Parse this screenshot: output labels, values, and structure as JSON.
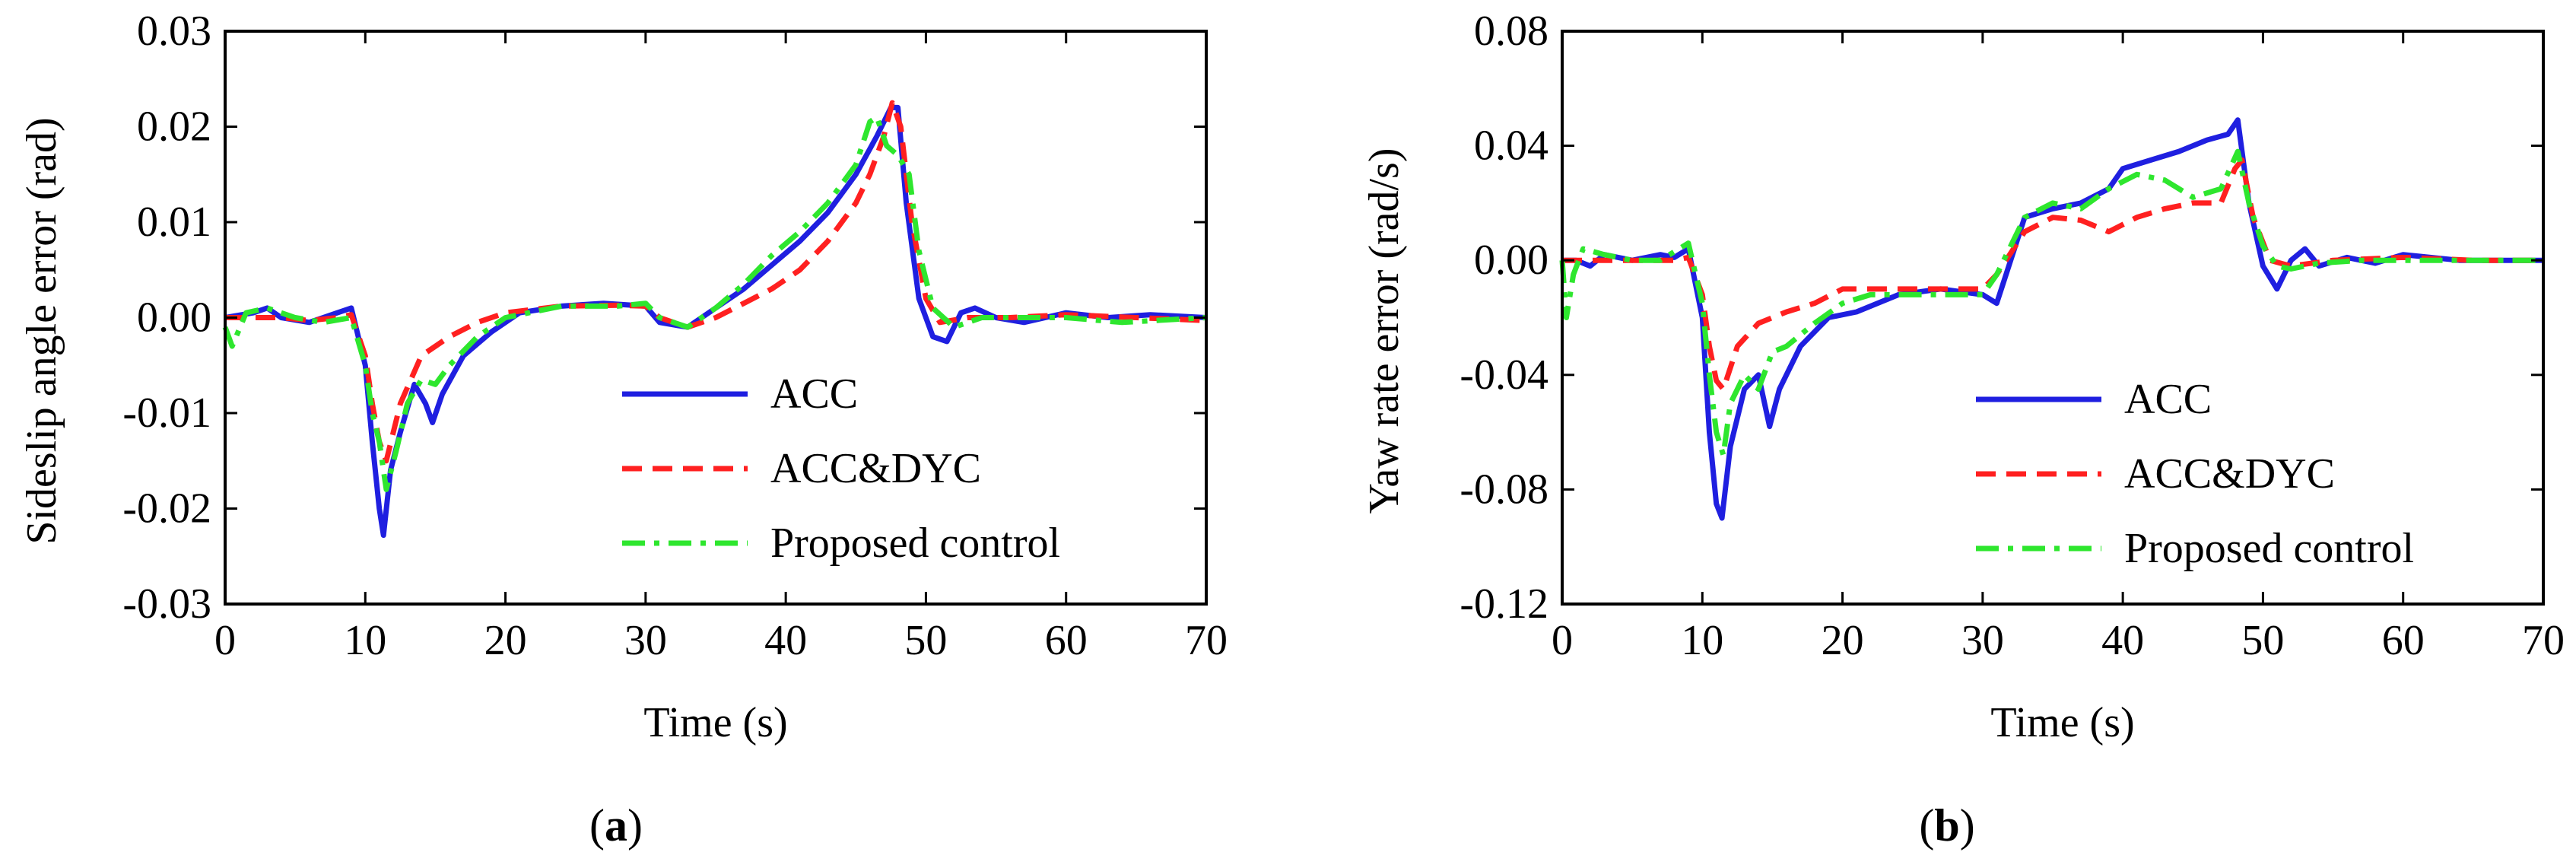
{
  "chart_data": [
    {
      "type": "line",
      "panel_label": "a",
      "xlabel": "Time (s)",
      "ylabel": "Sideslip angle error (rad)",
      "xlim": [
        0,
        70
      ],
      "ylim": [
        -0.03,
        0.03
      ],
      "x_ticks": [
        0,
        10,
        20,
        30,
        40,
        50,
        60,
        70
      ],
      "x_tick_labels": [
        "0",
        "10",
        "20",
        "30",
        "40",
        "50",
        "60",
        "70"
      ],
      "y_ticks": [
        0.03,
        0.02,
        0.01,
        0.0,
        -0.01,
        -0.02,
        -0.03
      ],
      "y_tick_labels": [
        "0.03",
        "0.02",
        "0.01",
        "0.00",
        "-0.01",
        "-0.02",
        "-0.03"
      ],
      "legend_position": "lower-right",
      "series": [
        {
          "name": "ACC",
          "color": "#1f1fe0",
          "dash": "solid",
          "x": [
            0,
            2,
            3,
            4,
            6,
            8,
            9,
            10,
            10.5,
            11,
            11.3,
            11.8,
            12.5,
            13.5,
            14.3,
            14.8,
            15.5,
            17,
            19,
            21,
            24,
            27,
            30,
            31,
            33,
            35,
            37,
            39,
            41,
            43,
            45,
            46.5,
            47.5,
            48,
            48.6,
            49.5,
            50.5,
            51.5,
            52.5,
            53.5,
            55,
            57,
            60,
            63,
            66,
            70
          ],
          "y": [
            0.0,
            0.0005,
            0.001,
            0.0,
            -0.0005,
            0.0005,
            0.001,
            -0.005,
            -0.013,
            -0.02,
            -0.0228,
            -0.016,
            -0.012,
            -0.007,
            -0.009,
            -0.011,
            -0.008,
            -0.004,
            -0.0015,
            0.0005,
            0.0012,
            0.0015,
            0.0012,
            -0.0005,
            -0.001,
            0.001,
            0.003,
            0.0055,
            0.008,
            0.011,
            0.015,
            0.019,
            0.022,
            0.022,
            0.012,
            0.002,
            -0.002,
            -0.0025,
            0.0005,
            0.001,
            0.0,
            -0.0005,
            0.0005,
            0.0,
            0.0003,
            0.0
          ]
        },
        {
          "name": "ACC&DYC",
          "color": "#ff2020",
          "dash": "dashed",
          "x": [
            0,
            2,
            4,
            6,
            8,
            9,
            10,
            10.5,
            11,
            11.5,
            12.5,
            14,
            16,
            18,
            20,
            24,
            28,
            30,
            31,
            33,
            35,
            37,
            39,
            41,
            43,
            45,
            46,
            47,
            47.6,
            48.2,
            49,
            50,
            51,
            53,
            56,
            60,
            65,
            70
          ],
          "y": [
            0.0,
            0.0,
            0.0,
            -0.0003,
            0.0,
            0.0003,
            -0.004,
            -0.009,
            -0.013,
            -0.015,
            -0.009,
            -0.004,
            -0.002,
            -0.0005,
            0.0005,
            0.0012,
            0.0013,
            0.0012,
            0.0,
            -0.001,
            0.0,
            0.0015,
            0.003,
            0.005,
            0.008,
            0.012,
            0.015,
            0.019,
            0.0225,
            0.02,
            0.01,
            0.002,
            -0.0005,
            0.0,
            0.0,
            0.0003,
            0.0,
            -0.0003
          ]
        },
        {
          "name": "Proposed control",
          "color": "#2ee62e",
          "dash": "dashdot",
          "x": [
            0,
            0.5,
            1.5,
            3,
            5,
            7,
            9,
            10,
            10.5,
            11,
            11.5,
            12.2,
            13,
            14,
            15,
            16,
            18,
            20,
            24,
            28,
            30,
            31,
            33,
            35,
            37,
            39,
            41,
            43,
            45,
            46,
            46.5,
            47.2,
            48,
            48.8,
            49.5,
            50.5,
            52,
            54,
            56,
            60,
            64,
            70
          ],
          "y": [
            -0.001,
            -0.003,
            0.0005,
            0.001,
            0.0,
            -0.0005,
            0.0,
            -0.005,
            -0.01,
            -0.013,
            -0.018,
            -0.014,
            -0.009,
            -0.0065,
            -0.007,
            -0.005,
            -0.002,
            0.0,
            0.0012,
            0.0012,
            0.0015,
            0.0,
            -0.001,
            0.001,
            0.0035,
            0.0065,
            0.009,
            0.012,
            0.016,
            0.0205,
            0.021,
            0.018,
            0.017,
            0.015,
            0.007,
            0.001,
            -0.001,
            0.0,
            0.0,
            0.0,
            -0.0005,
            0.0
          ]
        }
      ]
    },
    {
      "type": "line",
      "panel_label": "b",
      "xlabel": "Time (s)",
      "ylabel": "Yaw rate error (rad/s)",
      "xlim": [
        0,
        70
      ],
      "ylim": [
        -0.12,
        0.08
      ],
      "x_ticks": [
        0,
        10,
        20,
        30,
        40,
        50,
        60,
        70
      ],
      "x_tick_labels": [
        "0",
        "10",
        "20",
        "30",
        "40",
        "50",
        "60",
        "70"
      ],
      "y_ticks": [
        0.08,
        0.04,
        0.0,
        -0.04,
        -0.08,
        -0.12
      ],
      "y_tick_labels": [
        "0.08",
        "0.04",
        "0.00",
        "-0.04",
        "-0.08",
        "-0.12"
      ],
      "legend_position": "lower-right",
      "series": [
        {
          "name": "ACC",
          "color": "#1f1fe0",
          "dash": "solid",
          "x": [
            0,
            1,
            2,
            3,
            5,
            7,
            8,
            9,
            10,
            10.5,
            11,
            11.4,
            12,
            13,
            14,
            14.8,
            15.5,
            17,
            19,
            21,
            24,
            27,
            30,
            31,
            32,
            33,
            35,
            37,
            39,
            40,
            42,
            44,
            46,
            47.5,
            48.2,
            49,
            50,
            51,
            52,
            53,
            54,
            56,
            58,
            60,
            64,
            70
          ],
          "y": [
            0.0,
            0.0,
            -0.002,
            0.002,
            0.0,
            0.002,
            0.001,
            0.004,
            -0.02,
            -0.06,
            -0.085,
            -0.09,
            -0.065,
            -0.045,
            -0.04,
            -0.058,
            -0.045,
            -0.03,
            -0.02,
            -0.018,
            -0.012,
            -0.01,
            -0.012,
            -0.015,
            0.0,
            0.015,
            0.018,
            0.02,
            0.025,
            0.032,
            0.035,
            0.038,
            0.042,
            0.044,
            0.049,
            0.02,
            -0.002,
            -0.01,
            0.0,
            0.004,
            -0.002,
            0.001,
            -0.001,
            0.002,
            0.0,
            0.0
          ]
        },
        {
          "name": "ACC&DYC",
          "color": "#ff2020",
          "dash": "dashed",
          "x": [
            0,
            2,
            4,
            6,
            8,
            9,
            10,
            10.5,
            11,
            11.5,
            12.5,
            14,
            16,
            18,
            20,
            22,
            26,
            30,
            31,
            33,
            35,
            37,
            39,
            41,
            43,
            45,
            47,
            48,
            48.5,
            49.3,
            50.5,
            52,
            55,
            60,
            65,
            70
          ],
          "y": [
            0.0,
            0.0,
            0.0,
            0.0,
            0.0,
            0.001,
            -0.012,
            -0.03,
            -0.042,
            -0.045,
            -0.03,
            -0.022,
            -0.018,
            -0.015,
            -0.01,
            -0.01,
            -0.01,
            -0.01,
            -0.005,
            0.01,
            0.015,
            0.014,
            0.01,
            0.015,
            0.018,
            0.02,
            0.02,
            0.032,
            0.035,
            0.015,
            0.0,
            -0.002,
            0.0,
            0.001,
            0.0,
            0.0
          ]
        },
        {
          "name": "Proposed control",
          "color": "#2ee62e",
          "dash": "dashdot",
          "x": [
            0,
            0.3,
            0.8,
            1.5,
            3,
            5,
            7,
            9,
            10,
            10.5,
            11,
            11.5,
            12,
            13,
            14,
            15,
            16,
            18,
            20,
            22,
            26,
            30,
            31,
            33,
            35,
            37,
            39,
            41,
            43,
            45,
            47,
            48.2,
            49,
            50,
            51,
            52,
            54,
            57,
            60,
            65,
            70
          ],
          "y": [
            0.0,
            -0.02,
            -0.005,
            0.004,
            0.002,
            0.0,
            0.0,
            0.006,
            -0.015,
            -0.04,
            -0.06,
            -0.068,
            -0.05,
            -0.04,
            -0.045,
            -0.032,
            -0.03,
            -0.022,
            -0.015,
            -0.012,
            -0.012,
            -0.012,
            -0.005,
            0.015,
            0.02,
            0.018,
            0.025,
            0.03,
            0.028,
            0.022,
            0.025,
            0.038,
            0.02,
            0.005,
            -0.002,
            -0.003,
            -0.001,
            0.0,
            0.0,
            0.0,
            0.0
          ]
        }
      ]
    }
  ]
}
